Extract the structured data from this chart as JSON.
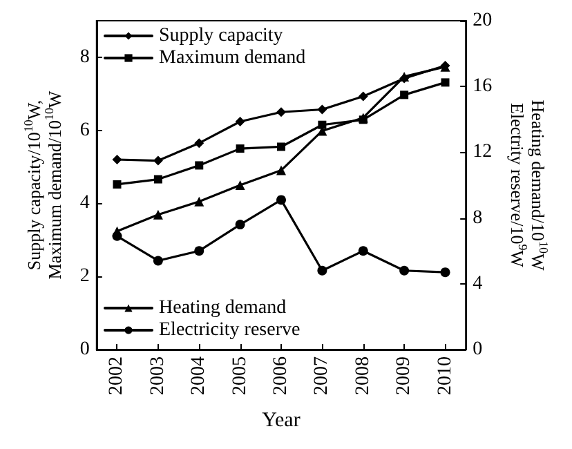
{
  "chart_data": {
    "type": "line",
    "xlabel": "Year",
    "ylabel": "Supply capacity/10$^{10}$W,\nMaximum demand/10$^{10}$W",
    "y2label": "Heating demand/10$^{10}$W\nElectrity reserve/10$^{9}$W",
    "categories": [
      "2002",
      "2003",
      "2004",
      "2005",
      "2006",
      "2007",
      "2008",
      "2009",
      "2010"
    ],
    "series": [
      {
        "name": "Supply capacity",
        "color": "#000000",
        "marker": "diamond",
        "values": [
          5.2,
          5.17,
          5.65,
          6.24,
          6.5,
          6.57,
          6.93,
          7.42,
          7.77
        ]
      },
      {
        "name": "Maximum demand",
        "color": "#000000",
        "marker": "square",
        "values": [
          4.52,
          4.66,
          5.04,
          5.5,
          5.55,
          6.15,
          6.29,
          6.97,
          7.31
        ]
      },
      {
        "name": "Heating demand",
        "color": "#000000",
        "marker": "triangle",
        "axis": "y2",
        "values": [
          7.2,
          8.2,
          9.0,
          10.0,
          10.9,
          13.3,
          14.1,
          16.6,
          17.2
        ]
      },
      {
        "name": "Electricity reserve",
        "color": "#000000",
        "marker": "circle",
        "axis": "y2",
        "values": [
          6.9,
          5.4,
          6.0,
          7.6,
          9.1,
          4.8,
          6.0,
          4.8,
          4.7
        ]
      }
    ],
    "ylim": [
      0,
      9
    ],
    "yticks": [
      0,
      2,
      4,
      6,
      8
    ],
    "y2lim": [
      0,
      20
    ],
    "y2ticks": [
      0,
      4,
      8,
      12,
      16,
      20
    ],
    "legend": "top left",
    "grid": false,
    "line_style": "solid"
  }
}
